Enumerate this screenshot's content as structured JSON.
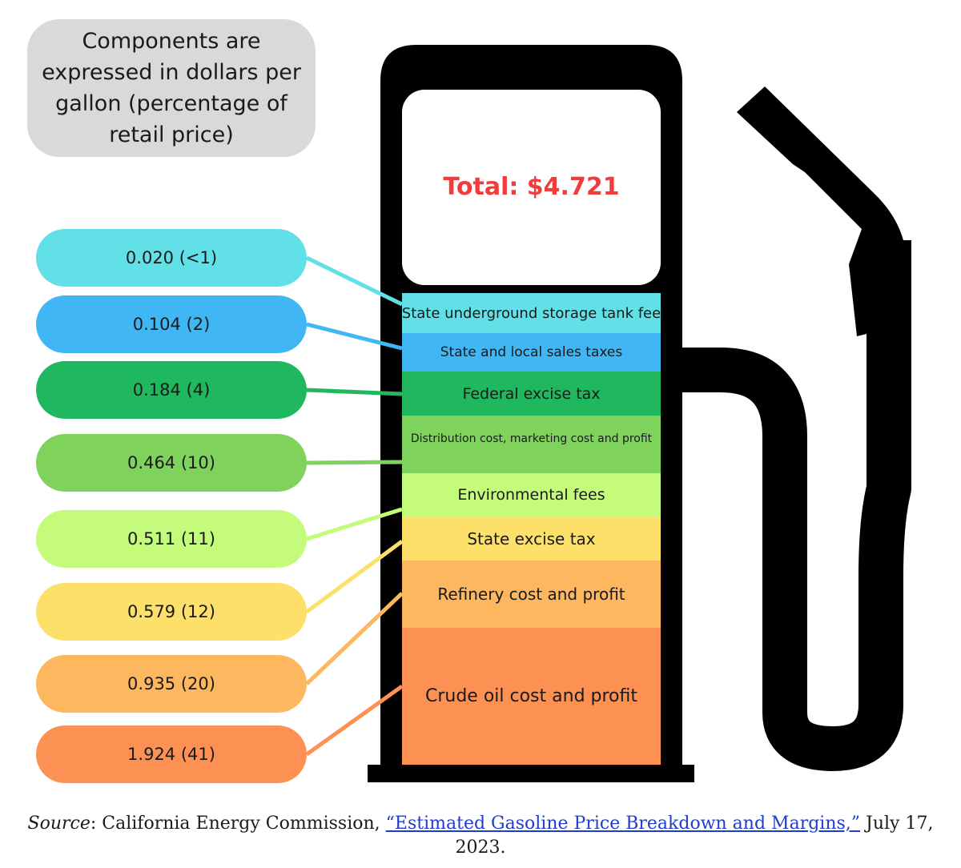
{
  "note": "Components are expressed in dollars per gallon (percentage of retail price)",
  "chart_data": {
    "type": "stacked-bar",
    "title": "",
    "total_label": "Total: $4.721",
    "total": 4.721,
    "unit": "dollars per gallon",
    "components": [
      {
        "name": "State underground storage tank fee",
        "value": 0.02,
        "pct": "<1",
        "label": "0.020 (<1)",
        "color": "#62e0e8"
      },
      {
        "name": "State and local sales taxes",
        "value": 0.104,
        "pct": "2",
        "label": "0.104 (2)",
        "color": "#40b6f5"
      },
      {
        "name": "Federal excise tax",
        "value": 0.184,
        "pct": "4",
        "label": "0.184 (4)",
        "color": "#1fb85e"
      },
      {
        "name": "Distribution cost, marketing cost and profit",
        "value": 0.464,
        "pct": "10",
        "label": "0.464 (10)",
        "color": "#7fd35d"
      },
      {
        "name": "Environmental fees",
        "value": 0.511,
        "pct": "11",
        "label": "0.511 (11)",
        "color": "#c4fb7b"
      },
      {
        "name": "State excise tax",
        "value": 0.579,
        "pct": "12",
        "label": "0.579 (12)",
        "color": "#fde06a"
      },
      {
        "name": "Refinery cost and profit",
        "value": 0.935,
        "pct": "20",
        "label": "0.935 (20)",
        "color": "#fdb75f"
      },
      {
        "name": "Crude oil cost and profit",
        "value": 1.924,
        "pct": "41",
        "label": "1.924 (41)",
        "color": "#fd9154"
      }
    ]
  },
  "source": {
    "prefix": "Source",
    "org": ": California Energy Commission, ",
    "link_text": "“Estimated Gasoline Price Breakdown and Margins,”",
    "suffix": " July 17,",
    "year": "2023."
  }
}
